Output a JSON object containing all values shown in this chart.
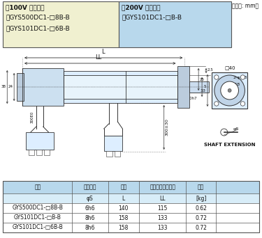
{
  "title_100v": "（100V 仕様品）",
  "model_100v_1": "・GYS500DC1-□8B-B",
  "model_100v_2": "・GYS101DC1-□6B-B",
  "title_200v": "（200V 仕様品）",
  "model_200v_1": "・GYS101DC1-□B-B",
  "unit": "（単位: mm）",
  "shaft_ext": "SHAFT EXTENSION",
  "table_headers_1": [
    "形式",
    "軸端形状",
    "全長",
    "寸法（フランジ）",
    "質量"
  ],
  "table_headers_2": [
    "",
    "φS",
    "L",
    "LL",
    "[kg]"
  ],
  "table_rows": [
    [
      "GYS500DC1-□8B-B",
      "6h6",
      "140",
      "115",
      "0.62"
    ],
    [
      "GYS101DC1-□B-B",
      "8h6",
      "158",
      "133",
      "0.72"
    ],
    [
      "GYS101DC1-□6B-B",
      "8h6",
      "158",
      "133",
      "0.72"
    ]
  ],
  "bg_color_header": "#b8d8ec",
  "bg_color_light": "#d8edf8",
  "bg_100v": "#f0f0d0",
  "bg_200v": "#b8d8ec",
  "border_color": "#555555",
  "text_color": "#111111",
  "drawing_color": "#333333"
}
